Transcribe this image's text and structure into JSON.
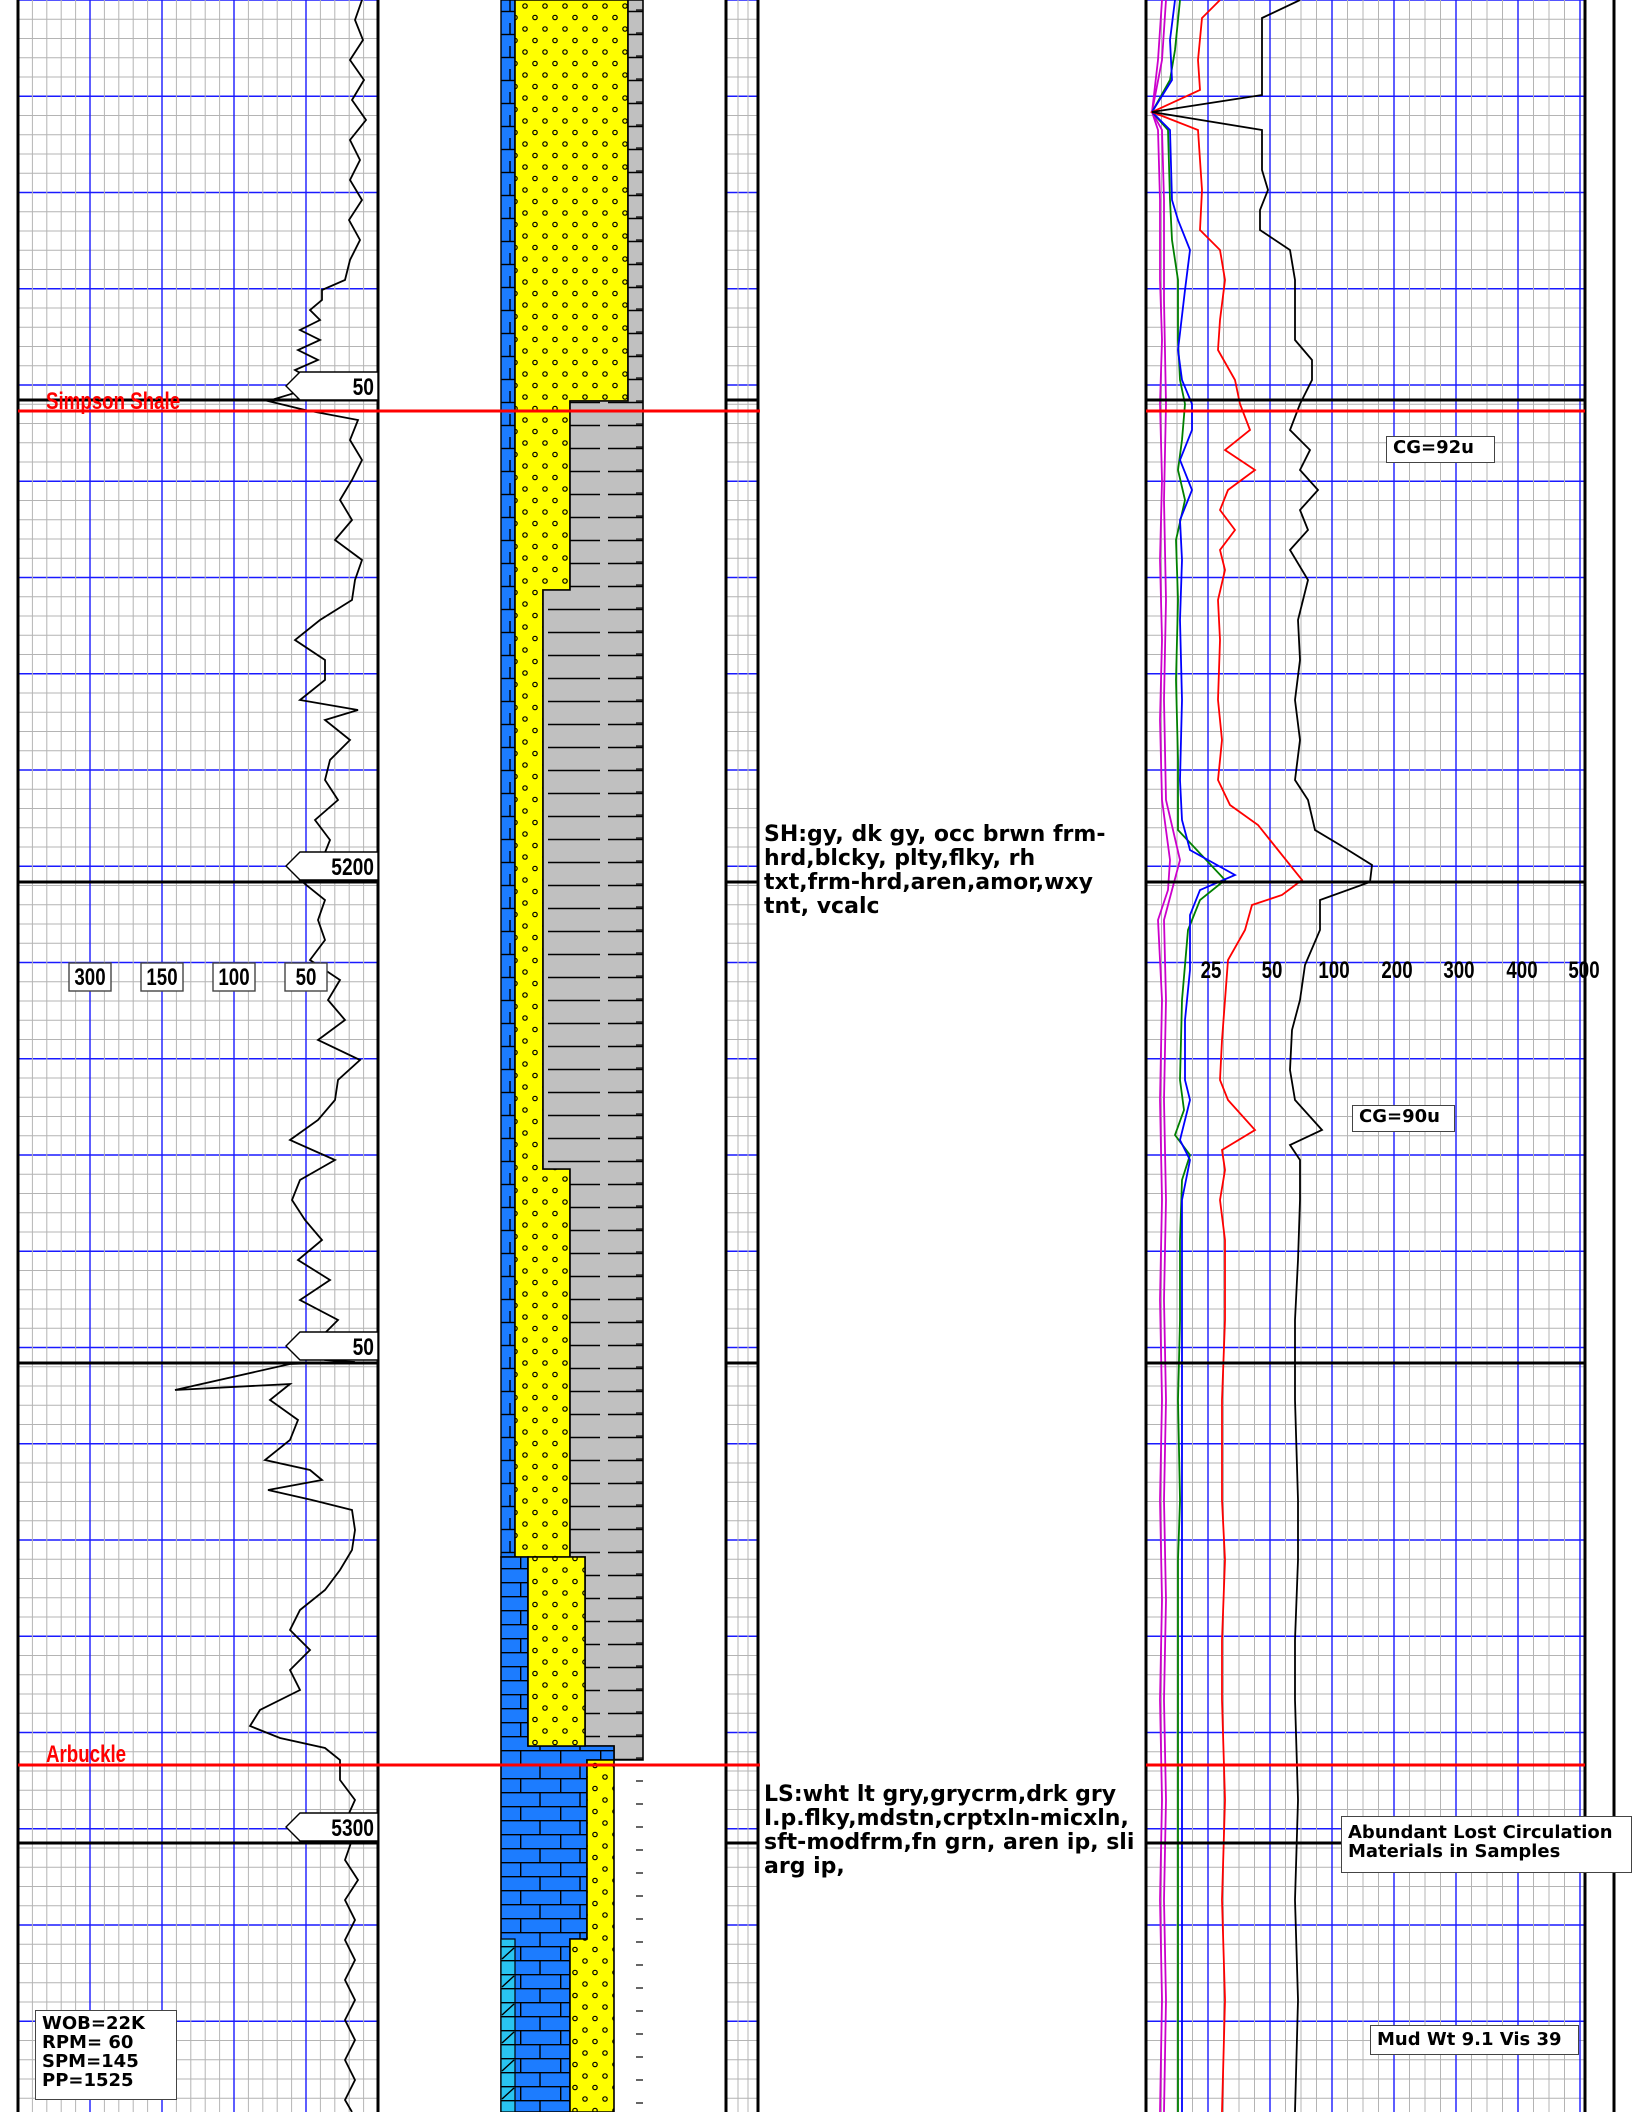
{
  "formation_tops": {
    "simpson_shale": "Simpson Shale",
    "arbuckle": "Arbuckle"
  },
  "depth_labels": {
    "d5200": "5200",
    "d5300": "5300",
    "marker_50_a": "50",
    "marker_50_b": "50"
  },
  "rop_scale": [
    "300",
    "150",
    "100",
    "50"
  ],
  "gas_scale": [
    "25",
    "50",
    "100",
    "200",
    "300",
    "400",
    "500"
  ],
  "lithology_descriptions": {
    "shale": "SH:gy, dk gy, occ brwn frm-\nhrd,blcky, plty,flky, rh\ntxt,frm-hrd,aren,amor,wxy\ntnt, vcalc",
    "limestone": "LS:wht lt gry,grycrm,drk gry\nI.p.flky,mdstn,crptxln-micxln,\nsft-modfrm,fn grn, aren ip, sli\narg ip,"
  },
  "gas_annotations": {
    "cg_92": "CG=92u",
    "cg_90": "CG=90u"
  },
  "notes": {
    "lost_circulation": "Abundant Lost Circulation\nMaterials in Samples",
    "mud": "Mud Wt 9.1 Vis 39"
  },
  "drilling_params": {
    "wob": "WOB=22K",
    "rpm": "RPM= 60",
    "spm": "SPM=145",
    "pp": "PP=1525"
  },
  "colors": {
    "grid_fine": "#b4b4b4",
    "grid_major": "#1a1aff",
    "formation_top": "#ff0000",
    "sandstone": "#ffff00",
    "limestone": "#1c7cff",
    "shale": "#c0c0c0",
    "dolomite": "#29c4f0",
    "gas_c1": "#000000",
    "gas_c2": "#ff0000",
    "gas_c3": "#0000ff",
    "gas_c4": "#008000",
    "gas_c5": "#cc00cc"
  }
}
